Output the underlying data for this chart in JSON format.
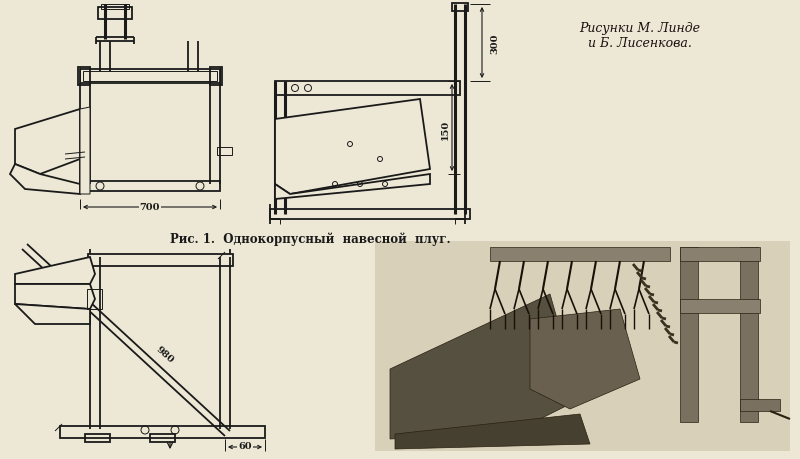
{
  "background_color": "#ede8d5",
  "line_color": "#1a1a1a",
  "text_color": "#1a1a1a",
  "author_color": "#1a1010",
  "title_author": "Рисунки М. Линде\nи Б. Лисенкова.",
  "caption": "Рис. 1.  Однокорпусный  навесной  плуг.",
  "dim_700": "700",
  "dim_300": "300",
  "dim_150": "150",
  "dim_980": "980",
  "dim_60": "60",
  "lw_main": 1.3,
  "lw_thin": 0.7,
  "lw_thick": 2.2,
  "font_dim": 7.0,
  "font_caption": 8.5,
  "font_author": 9.0
}
